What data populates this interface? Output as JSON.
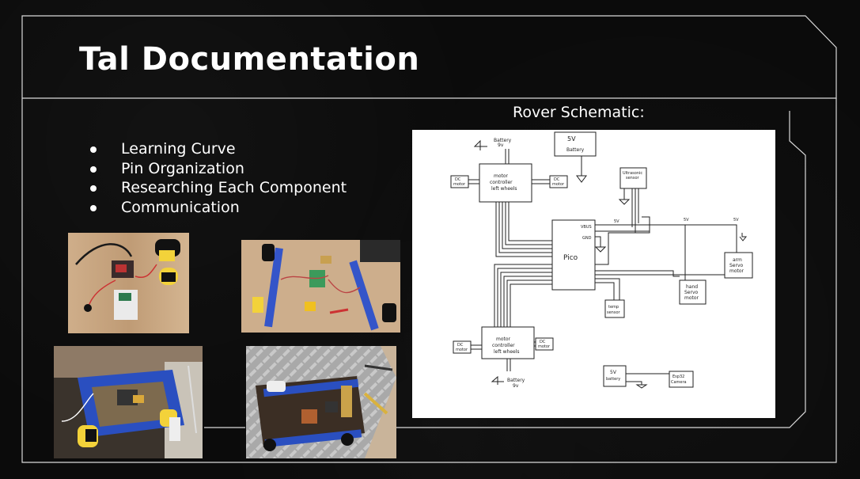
{
  "slide": {
    "title": "Tal Documentation",
    "bullets": [
      "Learning Curve",
      "Pin Organization",
      "Researching Each Component",
      "Communication"
    ],
    "schematic_label": "Rover Schematic:"
  },
  "schematic": {
    "battery_top": "Battery",
    "battery_top_v": "9v",
    "battery_bottom": "Battery",
    "battery_bottom_v": "9v",
    "five_v_battery": "5V",
    "five_v_battery_sub": "Battery",
    "motor_controller_top": "motor",
    "motor_controller_top_2": "controller",
    "motor_controller_top_3": "left wheels",
    "motor_controller_bottom": "motor",
    "motor_controller_bottom_2": "controller",
    "motor_controller_bottom_3": "left wheels",
    "dc_motor": "DC",
    "dc_motor_sub": "motor",
    "ultrasonic": "Ultrasonic",
    "ultrasonic_sub": "sensor",
    "pico": "Pico",
    "vbus": "VBUS",
    "gnd": "GND",
    "hand_servo": "hand",
    "hand_servo_2": "Servo",
    "hand_servo_3": "motor",
    "arm_servo": "arm",
    "arm_servo_2": "Servo",
    "arm_servo_3": "motor",
    "temp_sensor": "temp",
    "temp_sensor_2": "sensor",
    "fivev_battery_small": "5V",
    "fivev_battery_small_2": "battery",
    "esp32": "Esp32",
    "esp32_2": "Camera",
    "label_5v": "5V"
  },
  "colors": {
    "background": "#0b0b0b",
    "frame": "#d9d9d9",
    "text": "#ffffff"
  }
}
